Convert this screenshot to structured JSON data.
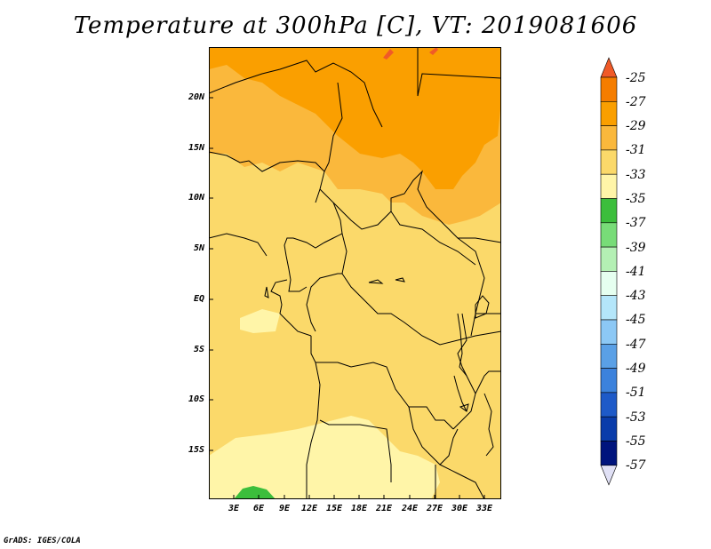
{
  "title": "Temperature at 300hPa [C], VT: 2019081606",
  "lat_labels": [
    "20N",
    "15N",
    "10N",
    "5N",
    "EQ",
    "5S",
    "10S",
    "15S"
  ],
  "lon_labels": [
    "3E",
    "6E",
    "9E",
    "12E",
    "15E",
    "18E",
    "21E",
    "24E",
    "27E",
    "30E",
    "33E"
  ],
  "colorbar": {
    "labels": [
      "-25",
      "-27",
      "-29",
      "-31",
      "-33",
      "-35",
      "-37",
      "-39",
      "-41",
      "-43",
      "-45",
      "-47",
      "-49",
      "-51",
      "-53",
      "-55",
      "-57"
    ],
    "colors": [
      "#f05a28",
      "#f57d00",
      "#fa9f00",
      "#fab83c",
      "#fbd96a",
      "#fff5a8",
      "#3cbe3c",
      "#78dc78",
      "#b4f0b4",
      "#e6fff0",
      "#b4e6fa",
      "#8cc8f5",
      "#5aa0e6",
      "#3c82dc",
      "#1e5ac8",
      "#0a3caa",
      "#00147d",
      "#e0e0f5"
    ]
  },
  "footer": "GrADS: IGES/COLA"
}
